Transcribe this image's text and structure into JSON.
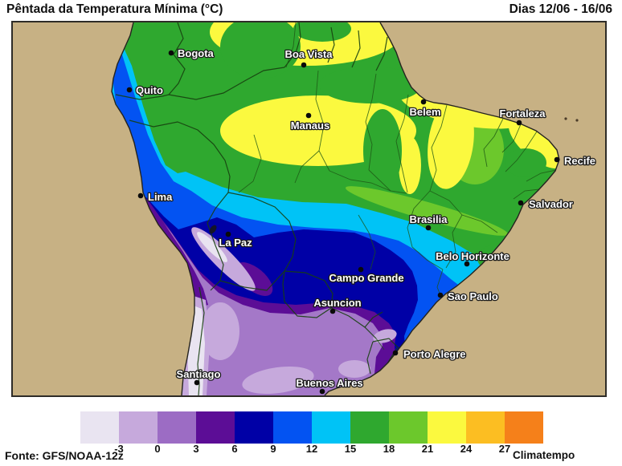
{
  "header": {
    "title": "Pêntada da Temperatura Mínima (°C)",
    "period": "Dias 12/06 - 16/06"
  },
  "footer": {
    "source": "Fonte: GFS/NOAA-12z",
    "brand": "Climatempo"
  },
  "legend": {
    "tick_labels": [
      "-3",
      "0",
      "3",
      "6",
      "9",
      "12",
      "15",
      "18",
      "21",
      "24",
      "27"
    ],
    "swatches": [
      "#e9e4f1",
      "#c6a9dc",
      "#9c6cc4",
      "#5c0d96",
      "#0000a6",
      "#0353f2",
      "#00c3f6",
      "#2fa82f",
      "#6cc82c",
      "#fbf93f",
      "#fcbe22",
      "#f5801a"
    ]
  },
  "map": {
    "ocean_color": "#c7b184",
    "cities": [
      {
        "name": "Bogota",
        "dot": [
          197,
          38
        ],
        "label": [
          205,
          43
        ],
        "anchor": "start"
      },
      {
        "name": "Quito",
        "dot": [
          145,
          84
        ],
        "label": [
          153,
          89
        ],
        "anchor": "start"
      },
      {
        "name": "Boa Vista",
        "dot": [
          362,
          53
        ],
        "label": [
          368,
          44
        ],
        "anchor": "middle"
      },
      {
        "name": "Manaus",
        "dot": [
          368,
          116
        ],
        "label": [
          370,
          133
        ],
        "anchor": "middle"
      },
      {
        "name": "Belem",
        "dot": [
          511,
          99
        ],
        "label": [
          513,
          116
        ],
        "anchor": "middle"
      },
      {
        "name": "Fortaleza",
        "dot": [
          630,
          125
        ],
        "label": [
          634,
          118
        ],
        "anchor": "middle"
      },
      {
        "name": "Recife",
        "dot": [
          677,
          171
        ],
        "label": [
          686,
          177
        ],
        "anchor": "start"
      },
      {
        "name": "Salvador",
        "dot": [
          632,
          225
        ],
        "label": [
          642,
          231
        ],
        "anchor": "start"
      },
      {
        "name": "Lima",
        "dot": [
          159,
          216
        ],
        "label": [
          168,
          222
        ],
        "anchor": "start"
      },
      {
        "name": "Brasilia",
        "dot": [
          517,
          256
        ],
        "label": [
          517,
          250
        ],
        "anchor": "middle"
      },
      {
        "name": "La Paz",
        "dot": [
          268,
          264
        ],
        "label": [
          277,
          279
        ],
        "anchor": "middle"
      },
      {
        "name": "Belo Horizonte",
        "dot": [
          565,
          301
        ],
        "label": [
          572,
          296
        ],
        "anchor": "middle"
      },
      {
        "name": "Campo Grande",
        "dot": [
          433,
          308
        ],
        "label": [
          440,
          323
        ],
        "anchor": "middle"
      },
      {
        "name": "Sao Paulo",
        "dot": [
          532,
          340
        ],
        "label": [
          541,
          346
        ],
        "anchor": "start"
      },
      {
        "name": "Asuncion",
        "dot": [
          398,
          360
        ],
        "label": [
          404,
          354
        ],
        "anchor": "middle"
      },
      {
        "name": "Porto Alegre",
        "dot": [
          476,
          412
        ],
        "label": [
          486,
          418
        ],
        "anchor": "start"
      },
      {
        "name": "Santiago",
        "dot": [
          229,
          449
        ],
        "label": [
          231,
          443
        ],
        "anchor": "middle"
      },
      {
        "name": "Buenos Aires",
        "dot": [
          385,
          460
        ],
        "label": [
          394,
          454
        ],
        "anchor": "middle"
      }
    ]
  }
}
